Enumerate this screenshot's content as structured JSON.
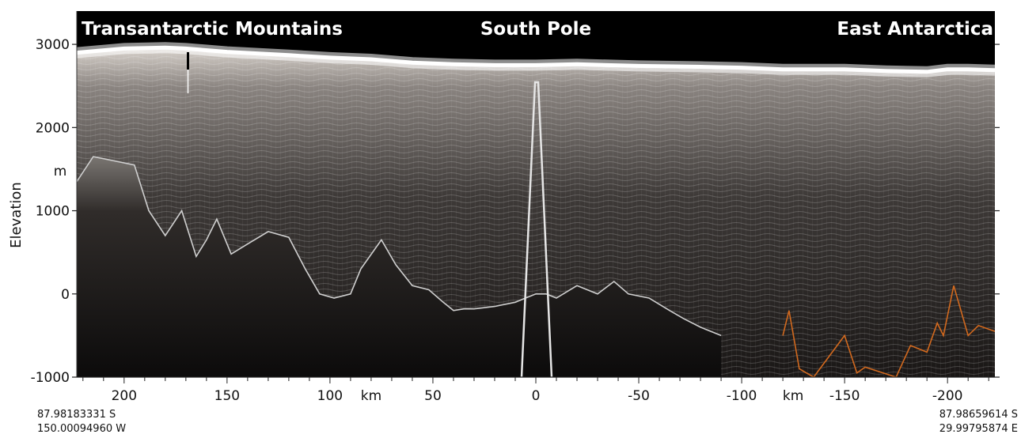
{
  "chart_data": {
    "type": "radargram",
    "ylabel": "Elevation",
    "yunit": "m",
    "xunit": "km",
    "ylim": [
      -1000,
      3400
    ],
    "xlim": [
      223,
      -223
    ],
    "yticks": [
      -1000,
      0,
      1000,
      2000,
      3000
    ],
    "xticks": [
      200,
      150,
      100,
      50,
      0,
      -50,
      -100,
      -150,
      -200
    ],
    "xunit_label_positions_km": [
      80,
      -125
    ],
    "annotations": [
      {
        "text": "Transantarctic Mountains",
        "x_km": 155
      },
      {
        "text": "South Pole",
        "x_km": 0
      },
      {
        "text": "East Antarctica",
        "x_km": -178
      }
    ],
    "endpoints": {
      "left": [
        "87.98183331 S",
        "150.00094960 W"
      ],
      "right": [
        "87.98659614 S",
        "29.99795874 E"
      ]
    },
    "colors": {
      "background": "#000000",
      "surface": "#ffffff",
      "bed": "#cfcfcf",
      "bed_alt": "#d2691e"
    },
    "series": [
      {
        "role": "surface",
        "x": [
          223,
          200,
          180,
          170,
          150,
          120,
          100,
          80,
          60,
          40,
          20,
          0,
          -20,
          -50,
          -80,
          -100,
          -120,
          -150,
          -170,
          -190,
          -200,
          -210,
          -223
        ],
        "y": [
          2900,
          2950,
          2960,
          2950,
          2910,
          2870,
          2840,
          2820,
          2780,
          2760,
          2750,
          2750,
          2760,
          2740,
          2730,
          2720,
          2700,
          2700,
          2680,
          2670,
          2700,
          2700,
          2690
        ]
      },
      {
        "role": "bed",
        "x": [
          223,
          215,
          205,
          195,
          188,
          180,
          172,
          165,
          160,
          155,
          148,
          140,
          130,
          120,
          112,
          105,
          98,
          90,
          85,
          75,
          68,
          60,
          52,
          45,
          40,
          35,
          30,
          20,
          10,
          5,
          0,
          -5,
          -10,
          -20,
          -30,
          -38,
          -45,
          -55,
          -65,
          -72,
          -80,
          -90
        ],
        "y": [
          1350,
          1650,
          1600,
          1550,
          1000,
          700,
          1000,
          450,
          650,
          900,
          480,
          600,
          750,
          680,
          300,
          0,
          -50,
          0,
          300,
          650,
          350,
          100,
          50,
          -100,
          -200,
          -180,
          -180,
          -150,
          -100,
          -50,
          0,
          0,
          -50,
          100,
          0,
          150,
          0,
          -50,
          -200,
          -300,
          -400,
          -500
        ]
      },
      {
        "role": "bed_alt",
        "x": [
          -120,
          -123,
          -128,
          -135,
          -150,
          -156,
          -160,
          -175,
          -182,
          -190,
          -195,
          -198,
          -203,
          -210,
          -215,
          -223
        ],
        "y": [
          -500,
          -200,
          -900,
          -1000,
          -500,
          -950,
          -880,
          -1000,
          -620,
          -700,
          -350,
          -500,
          100,
          -500,
          -380,
          -450
        ]
      }
    ]
  }
}
